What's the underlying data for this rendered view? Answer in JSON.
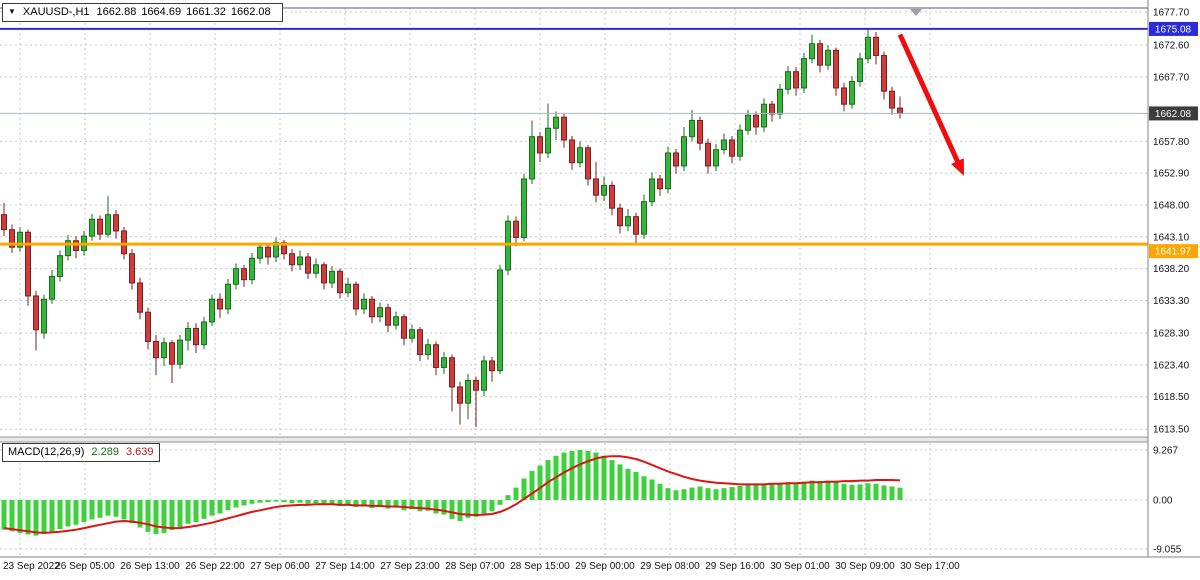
{
  "title_bar": {
    "dropdown_icon": "▼",
    "symbol_period": "XAUUSD-,H1",
    "open": "1662.88",
    "high": "1664.69",
    "low": "1661.32",
    "close": "1662.08"
  },
  "macd_label": {
    "name": "MACD(12,26,9)",
    "main_value": "2.289",
    "signal_value": "3.639"
  },
  "colors": {
    "up": "#35b53a",
    "up_border": "#1d6b20",
    "down": "#cd3d3d",
    "down_border": "#7e1f1f",
    "hist": "#3ed13e",
    "signal": "#dc1414",
    "grid": "#c8c8c8",
    "arrow": "#f00d0d",
    "axis_text": "#141414"
  },
  "levels": [
    {
      "name": "resistance",
      "label": "1675.08",
      "value": 1675.08,
      "color": "#2b2bdb",
      "width": 2,
      "badge_dy": 0
    },
    {
      "name": "bid-price",
      "label": "1662.08",
      "value": 1662.08,
      "color": "#aab4c6",
      "width": 1,
      "badge_color": "#3d3d3d",
      "badge_dy": 0
    },
    {
      "name": "support",
      "label": "1641.97",
      "value": 1641.97,
      "color": "#ffa500",
      "width": 3,
      "badge_dy": 7
    }
  ],
  "chart_data": [
    {
      "type": "candlestick",
      "title": "XAUUSD- H1",
      "y_range": [
        1612.3,
        1678.3
      ],
      "y_axis_labels": [
        "1677.70",
        "1672.60",
        "1667.70",
        "1657.80",
        "1652.90",
        "1648.00",
        "1643.10",
        "1638.20",
        "1633.30",
        "1628.30",
        "1623.40",
        "1618.50",
        "1613.50"
      ],
      "y_axis_values": [
        1677.7,
        1672.6,
        1667.7,
        1657.8,
        1652.9,
        1648.0,
        1643.1,
        1638.2,
        1633.3,
        1628.3,
        1623.4,
        1618.5,
        1613.5
      ],
      "x_tick_labels": [
        "23 Sep 2022",
        "26 Sep 05:00",
        "26 Sep 13:00",
        "26 Sep 22:00",
        "27 Sep 06:00",
        "27 Sep 14:00",
        "27 Sep 23:00",
        "28 Sep 07:00",
        "28 Sep 15:00",
        "29 Sep 00:00",
        "29 Sep 08:00",
        "29 Sep 16:00",
        "30 Sep 01:00",
        "30 Sep 09:00",
        "30 Sep 17:00"
      ],
      "arrow": {
        "from_bar": 112,
        "from_price": 1674.2,
        "to_bar": 120,
        "to_price": 1652.5
      },
      "shift_marker_bar": 114,
      "candles": [
        [
          1646.5,
          1648.3,
          1643.2,
          1644.2
        ],
        [
          1644.2,
          1645.0,
          1640.6,
          1641.5
        ],
        [
          1641.5,
          1644.6,
          1640.8,
          1643.8
        ],
        [
          1643.8,
          1644.2,
          1632.5,
          1634.0
        ],
        [
          1634.0,
          1634.8,
          1625.6,
          1628.8
        ],
        [
          1628.3,
          1634.2,
          1627.4,
          1633.5
        ],
        [
          1633.5,
          1638.0,
          1632.8,
          1637.0
        ],
        [
          1637.0,
          1641.0,
          1636.2,
          1640.2
        ],
        [
          1640.2,
          1643.4,
          1639.5,
          1642.5
        ],
        [
          1642.5,
          1643.2,
          1639.8,
          1641.0
        ],
        [
          1641.0,
          1644.0,
          1640.2,
          1643.2
        ],
        [
          1643.2,
          1646.6,
          1642.5,
          1645.8
        ],
        [
          1645.8,
          1646.4,
          1642.6,
          1643.5
        ],
        [
          1643.5,
          1649.4,
          1643.0,
          1646.5
        ],
        [
          1646.5,
          1647.2,
          1642.8,
          1644.0
        ],
        [
          1644.0,
          1644.6,
          1639.6,
          1640.5
        ],
        [
          1640.5,
          1641.2,
          1635.0,
          1636.0
        ],
        [
          1636.0,
          1636.8,
          1630.4,
          1631.5
        ],
        [
          1631.5,
          1632.2,
          1625.8,
          1627.0
        ],
        [
          1627.0,
          1628.0,
          1621.8,
          1624.5
        ],
        [
          1624.5,
          1627.6,
          1623.2,
          1626.8
        ],
        [
          1626.8,
          1627.2,
          1620.6,
          1623.5
        ],
        [
          1623.5,
          1628.0,
          1622.8,
          1627.2
        ],
        [
          1627.2,
          1630.0,
          1625.6,
          1629.0
        ],
        [
          1629.0,
          1629.8,
          1625.2,
          1626.5
        ],
        [
          1626.5,
          1630.8,
          1625.8,
          1630.0
        ],
        [
          1630.0,
          1634.2,
          1629.4,
          1633.5
        ],
        [
          1633.5,
          1634.4,
          1630.6,
          1632.0
        ],
        [
          1632.0,
          1636.6,
          1631.2,
          1635.8
        ],
        [
          1635.8,
          1639.0,
          1635.0,
          1638.2
        ],
        [
          1638.2,
          1638.8,
          1635.4,
          1636.5
        ],
        [
          1636.5,
          1640.6,
          1635.8,
          1639.8
        ],
        [
          1639.8,
          1642.2,
          1639.0,
          1641.5
        ],
        [
          1641.5,
          1642.0,
          1638.8,
          1640.0
        ],
        [
          1640.0,
          1643.0,
          1639.2,
          1642.2
        ],
        [
          1642.2,
          1642.6,
          1639.6,
          1640.5
        ],
        [
          1640.5,
          1641.2,
          1637.8,
          1638.8
        ],
        [
          1638.8,
          1641.0,
          1638.0,
          1640.0
        ],
        [
          1640.0,
          1640.6,
          1636.6,
          1637.5
        ],
        [
          1637.5,
          1639.8,
          1636.8,
          1638.8
        ],
        [
          1638.8,
          1639.2,
          1635.0,
          1636.0
        ],
        [
          1636.0,
          1638.6,
          1635.2,
          1637.8
        ],
        [
          1637.8,
          1638.2,
          1633.6,
          1634.5
        ],
        [
          1634.5,
          1636.8,
          1633.8,
          1635.8
        ],
        [
          1635.8,
          1636.2,
          1631.0,
          1632.0
        ],
        [
          1632.0,
          1634.4,
          1631.2,
          1633.5
        ],
        [
          1633.5,
          1634.0,
          1629.8,
          1630.8
        ],
        [
          1630.8,
          1633.0,
          1630.0,
          1632.2
        ],
        [
          1632.2,
          1632.8,
          1628.4,
          1629.5
        ],
        [
          1629.5,
          1631.6,
          1628.8,
          1630.8
        ],
        [
          1630.8,
          1631.2,
          1626.4,
          1627.5
        ],
        [
          1627.5,
          1629.6,
          1626.8,
          1628.8
        ],
        [
          1628.8,
          1629.2,
          1624.0,
          1625.0
        ],
        [
          1625.0,
          1627.4,
          1624.2,
          1626.5
        ],
        [
          1626.5,
          1627.0,
          1621.8,
          1623.0
        ],
        [
          1623.0,
          1625.4,
          1622.0,
          1624.5
        ],
        [
          1624.5,
          1625.0,
          1616.2,
          1620.0
        ],
        [
          1620.0,
          1620.8,
          1614.2,
          1617.5
        ],
        [
          1617.5,
          1622.0,
          1615.0,
          1621.0
        ],
        [
          1621.0,
          1621.6,
          1613.8,
          1619.5
        ],
        [
          1619.5,
          1624.8,
          1618.6,
          1624.0
        ],
        [
          1624.0,
          1624.6,
          1620.8,
          1622.5
        ],
        [
          1622.5,
          1638.8,
          1622.0,
          1638.0
        ],
        [
          1638.0,
          1646.4,
          1637.2,
          1645.5
        ],
        [
          1645.5,
          1646.2,
          1641.6,
          1643.0
        ],
        [
          1643.0,
          1652.8,
          1642.4,
          1652.0
        ],
        [
          1652.0,
          1661.0,
          1651.2,
          1658.5
        ],
        [
          1658.5,
          1659.2,
          1654.6,
          1656.0
        ],
        [
          1656.0,
          1663.6,
          1655.2,
          1659.8
        ],
        [
          1659.8,
          1662.4,
          1658.0,
          1661.5
        ],
        [
          1661.5,
          1662.0,
          1656.8,
          1658.0
        ],
        [
          1658.0,
          1658.6,
          1653.4,
          1654.5
        ],
        [
          1654.5,
          1657.8,
          1653.8,
          1656.8
        ],
        [
          1656.8,
          1657.2,
          1651.0,
          1652.0
        ],
        [
          1652.0,
          1654.6,
          1648.4,
          1649.5
        ],
        [
          1649.5,
          1652.4,
          1648.6,
          1651.0
        ],
        [
          1651.0,
          1651.6,
          1646.4,
          1647.5
        ],
        [
          1647.5,
          1648.2,
          1643.6,
          1644.8
        ],
        [
          1644.8,
          1647.4,
          1644.0,
          1646.2
        ],
        [
          1646.2,
          1646.8,
          1641.8,
          1643.5
        ],
        [
          1643.5,
          1649.6,
          1642.8,
          1648.5
        ],
        [
          1648.5,
          1653.0,
          1647.8,
          1652.0
        ],
        [
          1652.0,
          1652.6,
          1649.4,
          1650.5
        ],
        [
          1650.5,
          1657.0,
          1649.8,
          1656.0
        ],
        [
          1656.0,
          1656.6,
          1652.8,
          1654.0
        ],
        [
          1654.0,
          1660.0,
          1653.2,
          1658.5
        ],
        [
          1658.5,
          1662.6,
          1657.8,
          1661.0
        ],
        [
          1661.0,
          1661.6,
          1656.4,
          1657.5
        ],
        [
          1657.5,
          1658.2,
          1652.8,
          1654.0
        ],
        [
          1654.0,
          1657.4,
          1653.2,
          1656.5
        ],
        [
          1656.5,
          1659.0,
          1655.8,
          1658.0
        ],
        [
          1658.0,
          1658.6,
          1654.4,
          1655.5
        ],
        [
          1655.5,
          1660.4,
          1654.8,
          1659.5
        ],
        [
          1659.5,
          1662.6,
          1658.8,
          1661.8
        ],
        [
          1661.8,
          1662.4,
          1658.8,
          1660.0
        ],
        [
          1660.0,
          1664.4,
          1659.2,
          1663.5
        ],
        [
          1663.5,
          1664.0,
          1660.8,
          1662.0
        ],
        [
          1662.0,
          1666.6,
          1661.2,
          1665.8
        ],
        [
          1665.8,
          1669.4,
          1665.0,
          1668.5
        ],
        [
          1668.5,
          1669.2,
          1664.8,
          1666.0
        ],
        [
          1666.0,
          1671.4,
          1665.2,
          1670.5
        ],
        [
          1670.5,
          1674.2,
          1669.8,
          1672.8
        ],
        [
          1672.8,
          1673.4,
          1668.4,
          1669.5
        ],
        [
          1669.5,
          1672.6,
          1668.8,
          1671.8
        ],
        [
          1671.8,
          1672.2,
          1664.8,
          1666.0
        ],
        [
          1666.0,
          1666.8,
          1662.4,
          1663.5
        ],
        [
          1663.5,
          1667.8,
          1662.8,
          1667.0
        ],
        [
          1667.0,
          1671.4,
          1666.2,
          1670.5
        ],
        [
          1670.5,
          1675.1,
          1669.8,
          1673.8
        ],
        [
          1673.8,
          1674.6,
          1669.6,
          1671.0
        ],
        [
          1671.0,
          1671.6,
          1664.2,
          1665.5
        ],
        [
          1665.5,
          1666.2,
          1661.9,
          1662.9
        ],
        [
          1662.9,
          1664.7,
          1661.3,
          1662.1
        ]
      ]
    },
    {
      "type": "bar",
      "title": "MACD(12,26,9)",
      "y_axis_labels": [
        "9.267",
        "0.00",
        "-9.055"
      ],
      "y_axis_values": [
        9.267,
        0.0,
        -9.055
      ],
      "current_main": 2.289,
      "current_signal": 3.639,
      "histogram": [
        -5.5,
        -5.8,
        -6.1,
        -6.4,
        -6.6,
        -6.3,
        -5.9,
        -5.4,
        -4.9,
        -4.6,
        -4.1,
        -3.6,
        -3.3,
        -2.9,
        -3.1,
        -3.6,
        -4.3,
        -5.1,
        -5.9,
        -6.3,
        -6.1,
        -5.6,
        -5.0,
        -4.4,
        -4.1,
        -3.5,
        -2.9,
        -2.5,
        -1.9,
        -1.4,
        -1.0,
        -0.7,
        -0.5,
        -0.4,
        -0.3,
        -0.4,
        -0.6,
        -0.5,
        -0.7,
        -0.6,
        -0.9,
        -0.8,
        -1.1,
        -1.0,
        -1.3,
        -1.2,
        -1.5,
        -1.3,
        -1.6,
        -1.4,
        -1.9,
        -1.7,
        -2.1,
        -2.0,
        -2.5,
        -2.7,
        -3.5,
        -3.9,
        -3.3,
        -3.1,
        -2.5,
        -2.1,
        -0.9,
        0.9,
        2.3,
        4.0,
        5.4,
        6.4,
        7.4,
        8.2,
        8.8,
        9.1,
        9.267,
        9.1,
        8.8,
        8.2,
        7.4,
        6.6,
        5.8,
        5.2,
        4.4,
        3.8,
        3.0,
        2.2,
        1.8,
        2.0,
        2.3,
        2.5,
        2.2,
        2.0,
        2.2,
        2.4,
        2.6,
        2.8,
        2.9,
        3.0,
        2.9,
        3.1,
        3.3,
        3.2,
        3.4,
        3.6,
        3.5,
        3.6,
        3.3,
        3.0,
        2.8,
        2.9,
        3.1,
        3.0,
        2.7,
        2.5,
        2.289
      ],
      "signal": [
        -5.2,
        -5.4,
        -5.6,
        -5.8,
        -6.0,
        -6.1,
        -6.0,
        -5.9,
        -5.7,
        -5.5,
        -5.2,
        -4.9,
        -4.6,
        -4.3,
        -4.0,
        -3.9,
        -4.0,
        -4.2,
        -4.5,
        -4.9,
        -5.1,
        -5.2,
        -5.2,
        -5.0,
        -4.8,
        -4.5,
        -4.2,
        -3.8,
        -3.4,
        -3.0,
        -2.6,
        -2.2,
        -1.9,
        -1.6,
        -1.3,
        -1.1,
        -1.0,
        -0.9,
        -0.9,
        -0.8,
        -0.8,
        -0.8,
        -0.9,
        -0.9,
        -1.0,
        -1.0,
        -1.1,
        -1.1,
        -1.2,
        -1.2,
        -1.3,
        -1.4,
        -1.5,
        -1.6,
        -1.8,
        -2.0,
        -2.3,
        -2.6,
        -2.7,
        -2.8,
        -2.7,
        -2.6,
        -2.2,
        -1.6,
        -0.8,
        0.2,
        1.2,
        2.2,
        3.3,
        4.2,
        5.1,
        5.9,
        6.6,
        7.2,
        7.7,
        8.0,
        8.1,
        8.1,
        7.9,
        7.6,
        7.1,
        6.5,
        5.9,
        5.3,
        4.8,
        4.3,
        3.9,
        3.6,
        3.4,
        3.2,
        3.1,
        3.0,
        2.9,
        2.9,
        2.9,
        2.9,
        3.0,
        3.0,
        3.1,
        3.1,
        3.2,
        3.3,
        3.3,
        3.4,
        3.4,
        3.5,
        3.5,
        3.6,
        3.6,
        3.7,
        3.7,
        3.7,
        3.639
      ]
    }
  ]
}
